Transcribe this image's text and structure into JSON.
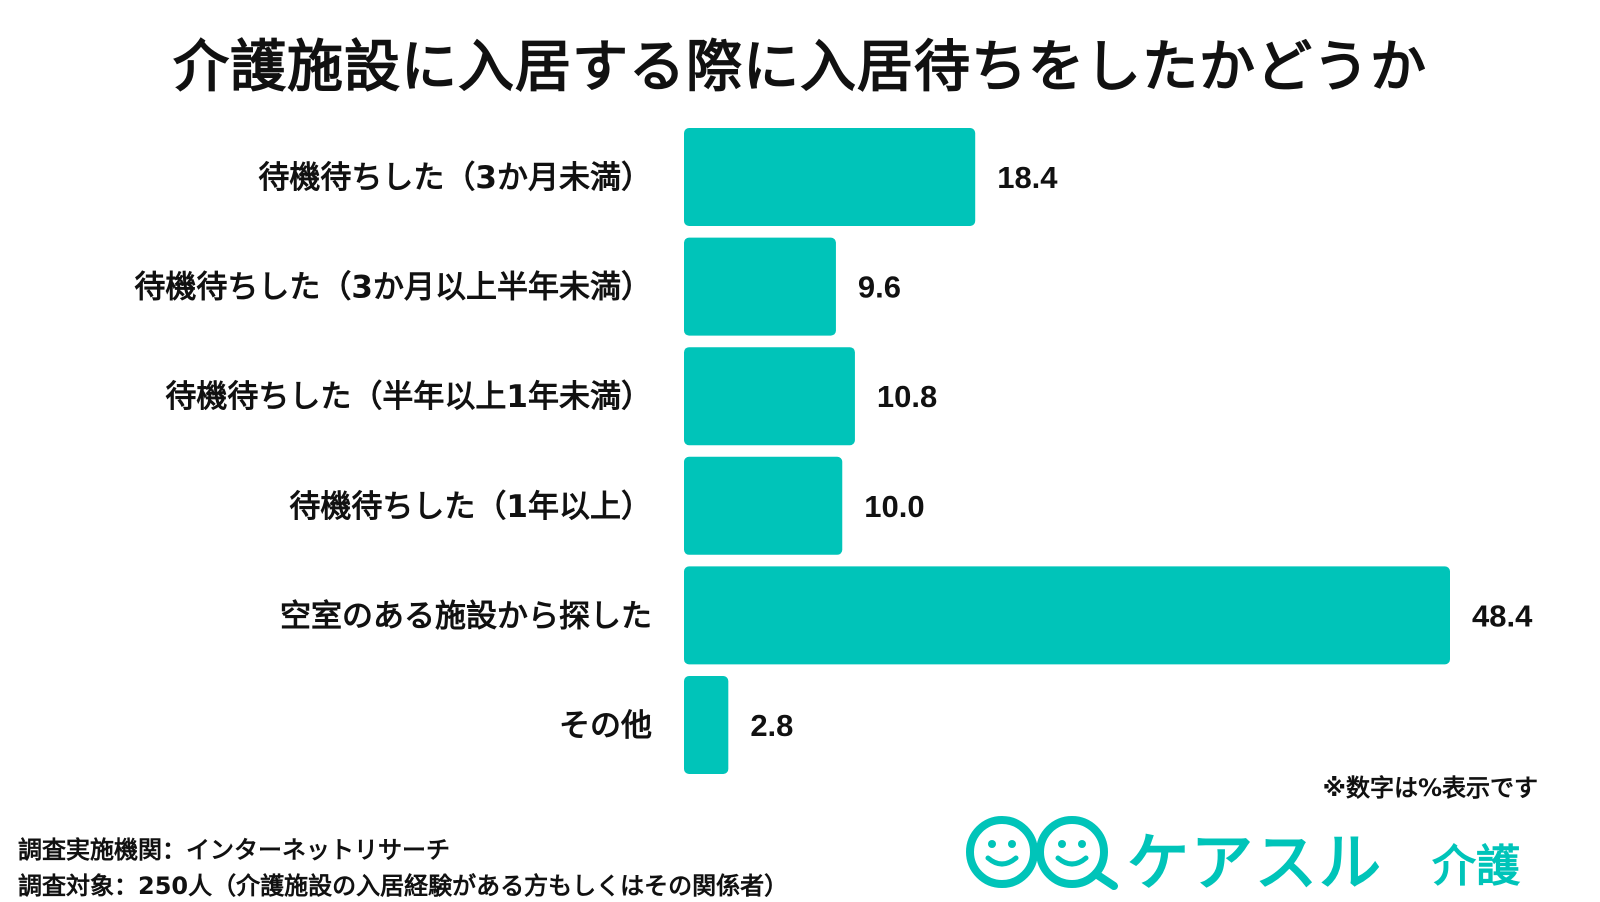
{
  "title": "介護施設に入居する際に入居待ちをしたかどうか",
  "note": "※数字は%表示です",
  "footer": {
    "line1": "調査実施機関：インターネットリサーチ",
    "line2": "調査対象：250人（介護施設の入居経験がある方もしくはその関係者）"
  },
  "logo": {
    "name": "ケアスル",
    "sub": "介護"
  },
  "colors": {
    "bar": "#00c4b9",
    "logo": "#00c4b9",
    "text": "#111111"
  },
  "chart_data": {
    "type": "bar",
    "orientation": "horizontal",
    "categories": [
      "待機待ちした（3か月未満）",
      "待機待ちした（3か月以上半年未満）",
      "待機待ちした（半年以上1年未満）",
      "待機待ちした（1年以上）",
      "空室のある施設から探した",
      "その他"
    ],
    "values": [
      18.4,
      9.6,
      10.8,
      10.0,
      48.4,
      2.8
    ],
    "value_labels": [
      "18.4",
      "9.6",
      "10.8",
      "10.0",
      "48.4",
      "2.8"
    ],
    "xlim": [
      0,
      48.4
    ],
    "grid": false,
    "legend": "none"
  }
}
